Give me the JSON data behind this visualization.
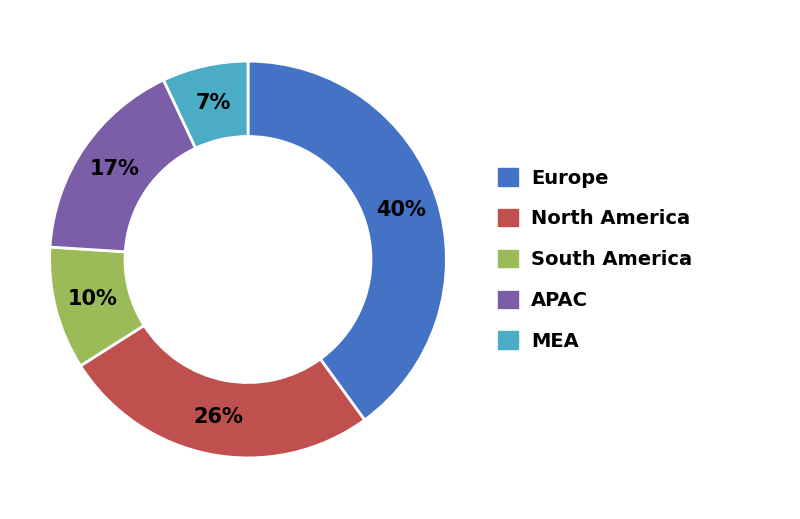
{
  "labels": [
    "Europe",
    "North America",
    "South America",
    "APAC",
    "MEA"
  ],
  "values": [
    40,
    26,
    10,
    17,
    7
  ],
  "colors": [
    "#4472C4",
    "#C0504D",
    "#9BBB59",
    "#7B5EA7",
    "#4BACC6"
  ],
  "pct_labels": [
    "40%",
    "26%",
    "10%",
    "17%",
    "7%"
  ],
  "background_color": "#ffffff",
  "label_fontsize": 15,
  "legend_fontsize": 14,
  "donut_width": 0.38
}
